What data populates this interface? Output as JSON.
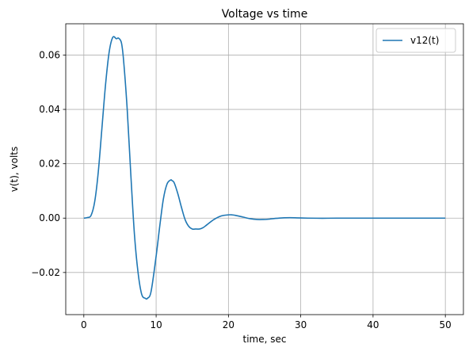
{
  "chart_data": {
    "type": "line",
    "title": "Voltage vs time",
    "xlabel": "time, sec",
    "ylabel": "v(t), volts",
    "xlim": [
      -2.5,
      52.5
    ],
    "ylim": [
      -0.0355,
      0.0715
    ],
    "xticks": [
      0,
      10,
      20,
      30,
      40,
      50
    ],
    "xtick_labels": [
      "0",
      "10",
      "20",
      "30",
      "40",
      "50"
    ],
    "yticks": [
      -0.02,
      0.0,
      0.02,
      0.04,
      0.06
    ],
    "ytick_labels": [
      "−0.02",
      "0.00",
      "0.02",
      "0.04",
      "0.06"
    ],
    "grid": true,
    "legend": {
      "position": "top-right",
      "entries": [
        "v12(t)"
      ]
    },
    "colors": {
      "line": "#1f77b4",
      "grid": "#b0b0b0"
    },
    "series": [
      {
        "name": "v12(t)",
        "x": [
          0,
          0.5,
          1,
          1.5,
          2,
          2.5,
          3,
          3.5,
          4,
          4.5,
          4.8,
          5.2,
          5.5,
          6,
          6.5,
          7,
          7.5,
          8,
          8.5,
          8.8,
          9.3,
          10,
          10.5,
          11,
          11.5,
          12,
          12.2,
          12.5,
          13,
          13.5,
          14,
          14.5,
          15,
          15.5,
          16,
          16.5,
          17,
          18,
          19,
          20,
          20.5,
          21,
          22,
          23,
          24,
          24.8,
          25.5,
          26.5,
          27.5,
          28.5,
          29.5,
          31,
          33,
          35,
          38,
          42,
          46,
          50
        ],
        "y": [
          0.0,
          0.0002,
          0.001,
          0.006,
          0.017,
          0.033,
          0.049,
          0.061,
          0.0665,
          0.066,
          0.0662,
          0.0645,
          0.058,
          0.04,
          0.016,
          -0.006,
          -0.02,
          -0.028,
          -0.0295,
          -0.0295,
          -0.027,
          -0.014,
          -0.003,
          0.007,
          0.0125,
          0.014,
          0.0138,
          0.013,
          0.009,
          0.004,
          -0.0005,
          -0.003,
          -0.004,
          -0.004,
          -0.004,
          -0.0035,
          -0.0025,
          -0.0005,
          0.0008,
          0.0012,
          0.0012,
          0.001,
          0.0004,
          -0.0002,
          -0.0005,
          -0.0005,
          -0.0004,
          -0.0001,
          0.0001,
          0.00015,
          0.0001,
          0.0,
          -5e-05,
          0.0,
          0.0,
          0.0,
          0.0,
          0.0
        ]
      }
    ]
  }
}
